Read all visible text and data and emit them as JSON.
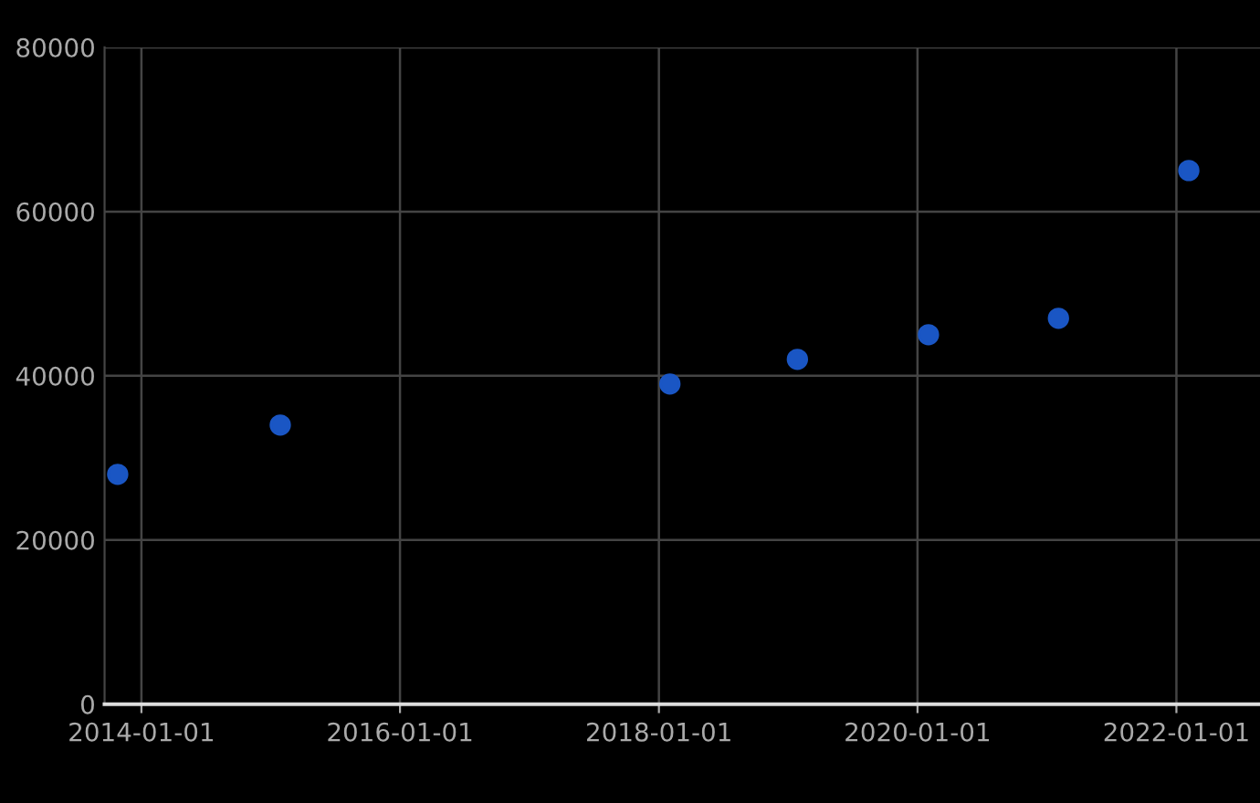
{
  "chart_data": {
    "type": "scatter",
    "x": [
      "2013-10-26",
      "2015-01-28",
      "2018-02-01",
      "2019-01-27",
      "2020-02-01",
      "2021-02-02",
      "2022-02-05"
    ],
    "series": [
      {
        "color": "#1a56c4",
        "values": [
          28000,
          34000,
          39000,
          42000,
          45000,
          47000,
          65000
        ]
      }
    ],
    "xlim": [
      "2013-09-19",
      "2022-08-25"
    ],
    "xticks": [
      "2014-01-01",
      "2016-01-01",
      "2018-01-01",
      "2020-01-01",
      "2022-01-01"
    ],
    "ylim": [
      0,
      80000
    ],
    "yticks": [
      0,
      20000,
      40000,
      60000,
      80000
    ],
    "grid": true,
    "legend": false,
    "marker": "circle"
  }
}
